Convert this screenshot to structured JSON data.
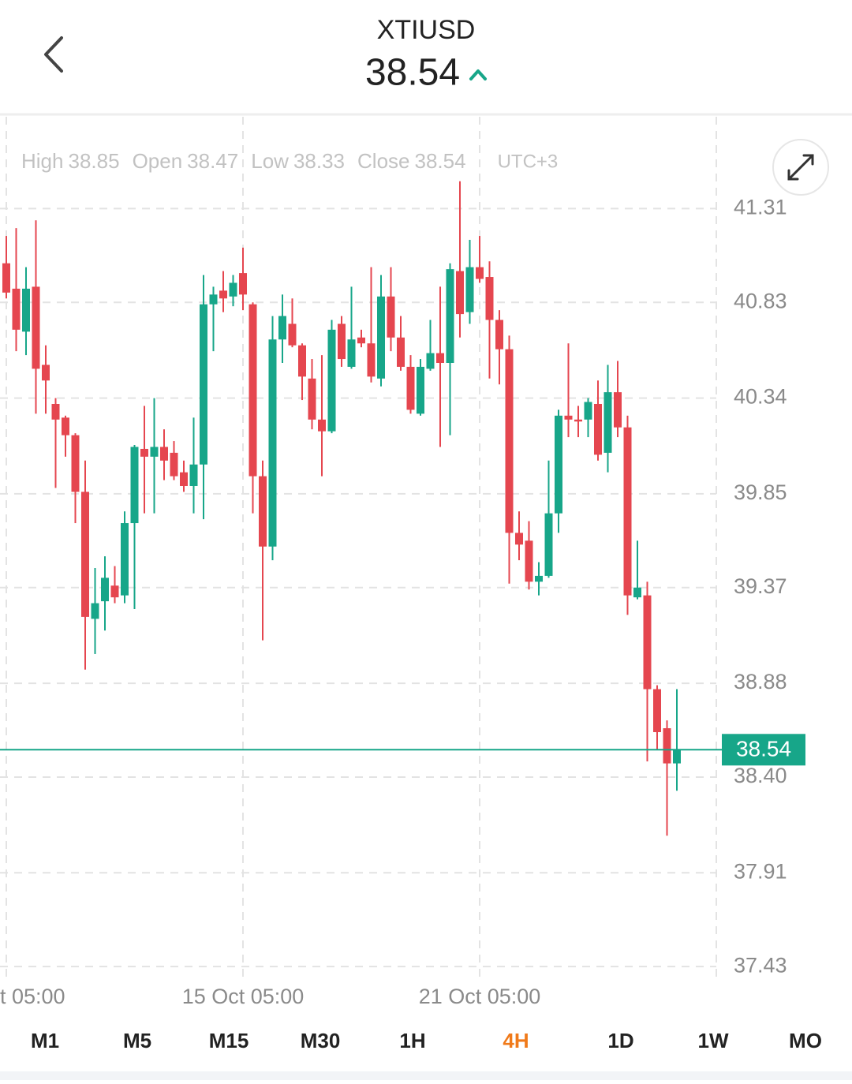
{
  "header": {
    "symbol": "XTIUSD",
    "price": 38.54
  },
  "chart_data": {
    "type": "candlestick",
    "legend_items": [
      {
        "label": "High",
        "value": 38.85
      },
      {
        "label": "Open",
        "value": 38.47
      },
      {
        "label": "Low",
        "value": 38.33
      },
      {
        "label": "Close",
        "value": 38.54
      }
    ],
    "timezone": "UTC+3",
    "categories": [
      "t 05:00",
      null,
      null,
      null,
      null,
      null,
      null,
      null,
      null,
      null,
      null,
      null,
      null,
      null,
      null,
      null,
      null,
      null,
      null,
      null,
      null,
      null,
      null,
      null,
      "15 Oct  05:00",
      null,
      null,
      null,
      null,
      null,
      null,
      null,
      null,
      null,
      null,
      null,
      null,
      null,
      null,
      null,
      null,
      null,
      null,
      null,
      null,
      null,
      null,
      null,
      "21 Oct  05:00",
      null,
      null,
      null,
      null,
      null,
      null,
      null,
      null,
      null,
      null,
      null,
      null,
      null,
      null,
      null,
      null,
      null,
      null,
      null,
      null
    ],
    "open": [
      41.03,
      40.9,
      40.68,
      40.91,
      40.51,
      40.31,
      40.24,
      40.15,
      39.86,
      39.21,
      39.3,
      39.38,
      39.33,
      39.7,
      40.08,
      40.04,
      40.09,
      40.06,
      39.96,
      39.89,
      40.0,
      40.82,
      40.89,
      40.86,
      40.98,
      40.82,
      39.94,
      39.58,
      40.64,
      40.72,
      40.61,
      40.44,
      40.23,
      40.17,
      40.72,
      40.5,
      40.65,
      40.62,
      40.44,
      40.86,
      40.65,
      40.5,
      40.26,
      40.49,
      40.57,
      40.52,
      40.99,
      40.78,
      41.01,
      40.96,
      40.74,
      40.59,
      39.65,
      39.61,
      39.4,
      39.43,
      39.75,
      40.25,
      40.23,
      40.23,
      40.31,
      40.06,
      40.37,
      40.19,
      39.32,
      39.33,
      38.85,
      38.65,
      38.47
    ],
    "high": [
      41.17,
      41.21,
      41.01,
      41.25,
      40.61,
      40.34,
      40.25,
      40.16,
      40.02,
      39.47,
      39.53,
      39.48,
      39.76,
      40.1,
      40.3,
      40.34,
      40.18,
      40.12,
      40.02,
      40.24,
      40.97,
      40.91,
      40.99,
      40.97,
      41.11,
      40.83,
      40.02,
      40.76,
      40.87,
      40.85,
      40.62,
      40.54,
      40.56,
      40.74,
      40.76,
      40.91,
      40.69,
      41.01,
      40.97,
      41.01,
      40.76,
      40.56,
      40.54,
      40.74,
      40.91,
      41.03,
      41.45,
      41.15,
      41.17,
      41.04,
      40.79,
      40.66,
      39.76,
      39.71,
      39.5,
      40.02,
      40.28,
      40.62,
      40.3,
      40.34,
      40.43,
      40.51,
      40.53,
      40.25,
      39.61,
      39.4,
      38.87,
      38.69,
      38.85
    ],
    "low": [
      40.85,
      40.58,
      40.56,
      40.26,
      40.26,
      39.88,
      40.04,
      39.7,
      38.95,
      39.03,
      39.15,
      39.29,
      39.29,
      39.26,
      39.75,
      39.75,
      39.92,
      39.92,
      39.86,
      39.75,
      39.72,
      40.58,
      40.78,
      40.81,
      40.79,
      39.75,
      39.1,
      39.51,
      40.52,
      40.6,
      40.33,
      40.18,
      39.94,
      40.16,
      40.5,
      40.49,
      40.6,
      40.42,
      40.4,
      40.58,
      40.48,
      40.26,
      40.25,
      40.48,
      40.09,
      40.15,
      40.65,
      40.72,
      40.93,
      40.44,
      40.41,
      39.39,
      39.51,
      39.36,
      39.33,
      39.42,
      39.65,
      40.14,
      40.14,
      40.14,
      40.02,
      39.96,
      40.14,
      39.23,
      39.31,
      38.48,
      38.54,
      38.1,
      38.33
    ],
    "close": [
      40.88,
      40.69,
      40.9,
      40.49,
      40.43,
      40.23,
      40.15,
      39.86,
      39.22,
      39.29,
      39.42,
      39.32,
      39.7,
      40.09,
      40.04,
      40.09,
      40.02,
      39.94,
      39.89,
      40.0,
      40.82,
      40.87,
      40.85,
      40.93,
      40.87,
      39.94,
      39.58,
      40.64,
      40.76,
      40.61,
      40.45,
      40.23,
      40.17,
      40.69,
      40.54,
      40.64,
      40.62,
      40.45,
      40.86,
      40.65,
      40.5,
      40.28,
      40.5,
      40.57,
      40.52,
      41.0,
      40.77,
      41.01,
      40.95,
      40.74,
      40.59,
      39.65,
      39.59,
      39.4,
      39.43,
      39.75,
      40.25,
      40.23,
      40.22,
      40.32,
      40.05,
      40.37,
      40.19,
      39.33,
      39.37,
      38.85,
      38.63,
      38.47,
      38.54
    ],
    "up_color": "#17a689",
    "down_color": "#e5464f",
    "price_line": 38.54,
    "ylim": [
      37.37,
      41.78
    ],
    "yticks": [
      41.31,
      40.83,
      40.34,
      39.85,
      39.37,
      38.88,
      {
        "value": 38.4,
        "label": "38.40"
      },
      37.91,
      37.43
    ],
    "grid": true
  },
  "timeframes": {
    "items": [
      "M1",
      "M5",
      "M15",
      "M30",
      "1H",
      "4H",
      "1D",
      "1W",
      "MO"
    ],
    "selected": "4H"
  }
}
